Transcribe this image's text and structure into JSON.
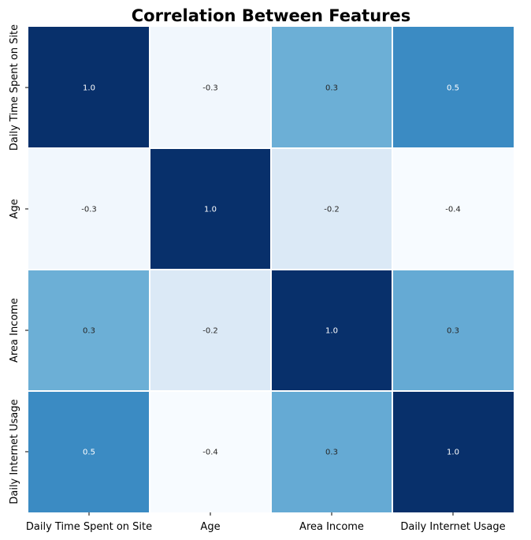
{
  "chart_data": {
    "type": "heatmap",
    "title": "Correlation Between Features",
    "xlabel": "",
    "ylabel": "",
    "x_categories": [
      "Daily Time Spent on Site",
      "Age",
      "Area Income",
      "Daily Internet Usage"
    ],
    "y_categories": [
      "Daily Time Spent on Site",
      "Age",
      "Area Income",
      "Daily Internet Usage"
    ],
    "values": [
      [
        1.0,
        -0.33,
        0.31,
        0.52
      ],
      [
        -0.33,
        1.0,
        -0.18,
        -0.37
      ],
      [
        0.31,
        -0.18,
        1.0,
        0.34
      ],
      [
        0.52,
        -0.37,
        0.34,
        1.0
      ]
    ],
    "cell_labels": [
      [
        "1.0",
        "-0.3",
        "0.3",
        "0.5"
      ],
      [
        "-0.3",
        "1.0",
        "-0.2",
        "-0.4"
      ],
      [
        "0.3",
        "-0.2",
        "1.0",
        "0.3"
      ],
      [
        "0.5",
        "-0.4",
        "0.3",
        "1.0"
      ]
    ],
    "colormap": "Blues",
    "color_range": [
      -0.37,
      1.0
    ],
    "cell_border_color": "#ffffff",
    "light_text_color": "#ffffff",
    "dark_text_color": "#262626",
    "colorbar": false,
    "grid": false
  }
}
